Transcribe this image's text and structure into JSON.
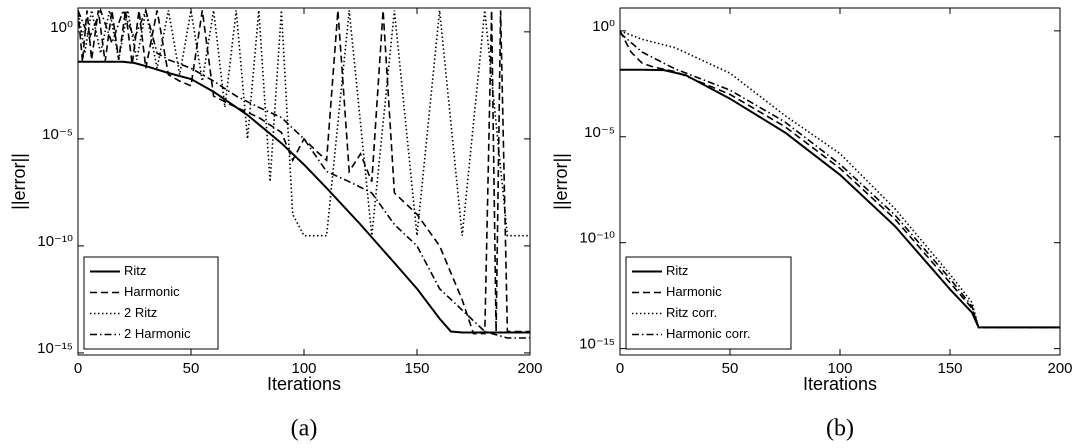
{
  "chart_data": [
    {
      "type": "line",
      "log_y": true,
      "caption": "(a)",
      "x_label": "Iterations",
      "y_label": "||error||",
      "xlim": [
        0,
        200
      ],
      "xticks": [
        0,
        50,
        100,
        150,
        200
      ],
      "ylim": [
        8e-16,
        13
      ],
      "yticks": [
        {
          "value": 1,
          "label": "10⁰"
        },
        {
          "value": 1e-05,
          "label": "10⁻⁵"
        },
        {
          "value": 1e-10,
          "label": "10⁻¹⁰"
        },
        {
          "value": 1e-15,
          "label": "10⁻¹⁵"
        }
      ],
      "legend": "lower left",
      "series": [
        {
          "name": "Ritz",
          "color": "#000000",
          "style": "solid",
          "x": [
            0,
            10,
            20,
            25,
            30,
            40,
            50,
            60,
            75,
            90,
            100,
            110,
            125,
            140,
            150,
            160,
            165,
            170,
            180,
            190,
            200
          ],
          "values": [
            0.04,
            0.04,
            0.04,
            0.035,
            0.025,
            0.012,
            0.0063,
            0.0016,
            0.00013,
            6.3e-06,
            6.3e-07,
            5e-08,
            1e-09,
            1.6e-11,
            1e-12,
            4e-14,
            1e-14,
            9e-15,
            9e-15,
            9e-15,
            9e-15
          ]
        },
        {
          "name": "Harmonic",
          "color": "#000000",
          "style": "dashed",
          "x": [
            0,
            2,
            4,
            6,
            9,
            12,
            15,
            18,
            21,
            24,
            27,
            30,
            35,
            40,
            45,
            50,
            55,
            60,
            70,
            80,
            90,
            95,
            100,
            105,
            110,
            115,
            120,
            125,
            130,
            135,
            140,
            150,
            160,
            170,
            175,
            180,
            183,
            185,
            187,
            190,
            195,
            200
          ],
          "values": [
            10,
            0.04,
            10,
            0.05,
            10,
            0.04,
            10,
            0.05,
            10,
            0.03,
            10,
            0.02,
            10,
            0.01,
            0.005,
            0.003,
            10,
            0.001,
            0.0003,
            0.0001,
            2e-05,
            1e-06,
            1e-05,
            3e-06,
            1e-06,
            10,
            3e-07,
            2e-06,
            1e-07,
            10,
            3e-08,
            3e-09,
            1e-10,
            3e-13,
            8e-15,
            8e-15,
            10,
            1e-14,
            10,
            1e-14,
            1e-14,
            1e-14
          ]
        },
        {
          "name": "2 Ritz",
          "color": "#000000",
          "style": "dotted",
          "x": [
            0,
            3,
            6,
            10,
            14,
            18,
            22,
            26,
            30,
            35,
            40,
            45,
            50,
            55,
            60,
            65,
            70,
            75,
            80,
            85,
            90,
            95,
            100,
            110,
            120,
            130,
            140,
            150,
            160,
            170,
            180,
            190,
            200
          ],
          "values": [
            10,
            0.1,
            10,
            0.1,
            10,
            0.05,
            10,
            0.05,
            10,
            0.02,
            10,
            0.01,
            10,
            0.005,
            10,
            0.0003,
            10,
            1e-05,
            10,
            1e-07,
            10,
            3e-09,
            3e-10,
            3e-10,
            10,
            3e-10,
            10,
            3e-10,
            10,
            3e-10,
            10,
            3e-10,
            3e-10
          ]
        },
        {
          "name": "2 Harmonic",
          "color": "#000000",
          "style": "dashdot",
          "x": [
            0,
            5,
            10,
            15,
            20,
            25,
            30,
            35,
            40,
            50,
            60,
            70,
            80,
            90,
            100,
            110,
            120,
            130,
            140,
            150,
            160,
            170,
            180,
            190,
            200
          ],
          "values": [
            10,
            0.5,
            10,
            0.3,
            10,
            0.5,
            10,
            0.1,
            0.05,
            0.02,
            0.005,
            0.001,
            0.0003,
            0.0001,
            1e-05,
            3e-07,
            1e-07,
            3e-08,
            1e-09,
            1e-10,
            1e-12,
            1e-13,
            1e-14,
            5e-15,
            5e-15
          ]
        }
      ]
    },
    {
      "type": "line",
      "log_y": true,
      "caption": "(b)",
      "x_label": "Iterations",
      "y_label": "||error||",
      "xlim": [
        0,
        200
      ],
      "xticks": [
        0,
        50,
        100,
        150,
        200
      ],
      "ylim": [
        5e-16,
        12
      ],
      "yticks": [
        {
          "value": 1,
          "label": "10⁰"
        },
        {
          "value": 1e-05,
          "label": "10⁻⁵"
        },
        {
          "value": 1e-10,
          "label": "10⁻¹⁰"
        },
        {
          "value": 1e-15,
          "label": "10⁻¹⁵"
        }
      ],
      "legend": "lower left",
      "series": [
        {
          "name": "Ritz",
          "color": "#000000",
          "style": "solid",
          "x": [
            0,
            10,
            20,
            30,
            50,
            75,
            100,
            125,
            150,
            160,
            163,
            170,
            200
          ],
          "values": [
            0.0145,
            0.0145,
            0.014,
            0.008,
            0.00063,
            1.6e-05,
            1.6e-07,
            6e-10,
            6.3e-13,
            5e-14,
            1e-14,
            1e-14,
            1e-14
          ]
        },
        {
          "name": "Harmonic",
          "color": "#000000",
          "style": "dashed",
          "x": [
            0,
            5,
            10,
            15,
            25,
            50,
            75,
            100,
            125,
            150,
            160,
            163,
            170,
            200
          ],
          "values": [
            1,
            0.1,
            0.03,
            0.02,
            0.012,
            0.001,
            3e-05,
            3.2e-07,
            1.3e-09,
            1.3e-12,
            8e-14,
            1e-14,
            1e-14,
            1e-14
          ]
        },
        {
          "name": "Ritz corr.",
          "color": "#000000",
          "style": "dotted",
          "x": [
            0,
            10,
            25,
            50,
            75,
            100,
            125,
            150,
            160,
            163,
            170,
            200
          ],
          "values": [
            1,
            0.4,
            0.16,
            0.01,
            0.0001,
            1.6e-06,
            4e-09,
            3.2e-12,
            1.5e-13,
            1e-14,
            1e-14,
            1e-14
          ]
        },
        {
          "name": "Harmonic corr.",
          "color": "#000000",
          "style": "dashdot",
          "x": [
            0,
            10,
            25,
            50,
            75,
            100,
            125,
            150,
            160,
            163,
            170,
            200
          ],
          "values": [
            0.8,
            0.1,
            0.016,
            0.0016,
            5e-05,
            5e-07,
            2e-09,
            2e-12,
            1e-13,
            1e-14,
            1e-14,
            1e-14
          ]
        }
      ]
    }
  ]
}
